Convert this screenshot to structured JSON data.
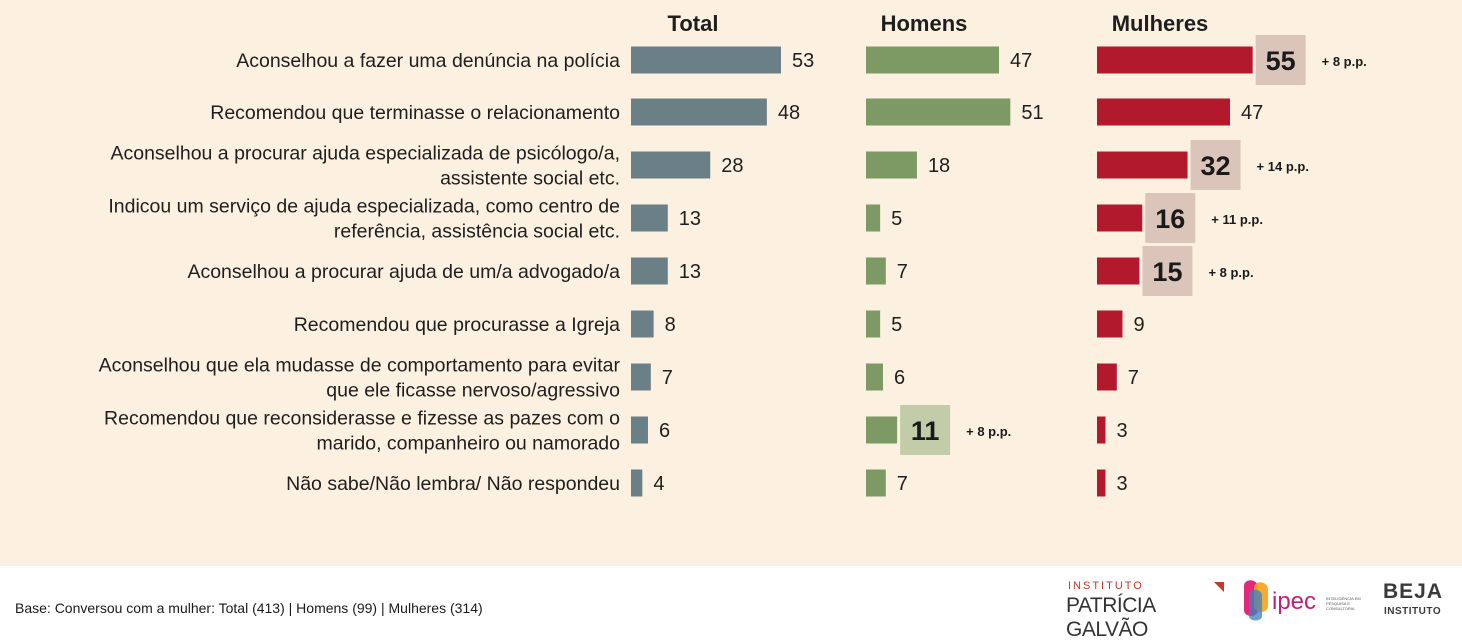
{
  "chart_data": {
    "type": "bar",
    "orientation": "horizontal",
    "unit": "%",
    "categories": [
      [
        "Aconselhou a fazer uma denúncia na polícia"
      ],
      [
        "Recomendou que terminasse o relacionamento"
      ],
      [
        "Aconselhou a procurar ajuda especializada de psicólogo/a,",
        "assistente social etc."
      ],
      [
        "Indicou um serviço de ajuda especializada, como centro de",
        "referência, assistência social etc."
      ],
      [
        "Aconselhou a procurar ajuda de um/a advogado/a"
      ],
      [
        "Recomendou que procurasse a Igreja"
      ],
      [
        "Aconselhou que ela mudasse de comportamento para evitar",
        "que ele ficasse nervoso/agressivo"
      ],
      [
        "Recomendou que reconsiderasse e fizesse as pazes com o",
        "marido, companheiro ou namorado"
      ],
      [
        "Não sabe/Não lembra/ Não respondeu"
      ]
    ],
    "series": [
      {
        "name": "Total",
        "color": "#6b7f87",
        "values": [
          53,
          48,
          28,
          13,
          13,
          8,
          7,
          6,
          4
        ],
        "highlights": []
      },
      {
        "name": "Homens",
        "color": "#7d9964",
        "highlight_color": "#c3cca8",
        "values": [
          47,
          51,
          18,
          5,
          7,
          5,
          6,
          11,
          7
        ],
        "highlights": [
          {
            "index": 7,
            "note": "+ 8 p.p."
          }
        ]
      },
      {
        "name": "Mulheres",
        "color": "#b3192d",
        "highlight_color": "#dbc5ba",
        "values": [
          55,
          47,
          32,
          16,
          15,
          9,
          7,
          3,
          3
        ],
        "highlights": [
          {
            "index": 0,
            "note": "+ 8 p.p."
          },
          {
            "index": 2,
            "note": "+ 14 p.p."
          },
          {
            "index": 3,
            "note": "+ 11 p.p."
          },
          {
            "index": 4,
            "note": "+ 8 p.p."
          }
        ]
      }
    ]
  },
  "footer": {
    "base_note": "Base: Conversou com a mulher: Total (413) | Homens (99) | Mulheres (314)",
    "logos": {
      "patricia_galvao": {
        "institute": "INSTITUTO",
        "name": "PATRÍCIA GALVÃO"
      },
      "ipec": {
        "name": "ipec",
        "tagline": "INTELIGÊNCIA EM PESQUISA E CONSULTORIA"
      },
      "beja": {
        "name": "BEJA",
        "sub": "INSTITUTO"
      }
    }
  }
}
